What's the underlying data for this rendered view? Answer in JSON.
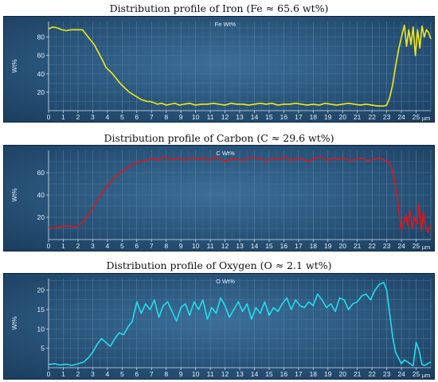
{
  "chart_data": [
    {
      "type": "line",
      "title": "Distribution profile of Iron (Fe ≈ 65.6 wt%)",
      "series_label": "Fe Wt%",
      "ylabel": "Wt%",
      "xunit": "µm",
      "xlim": [
        0,
        26
      ],
      "ylim": [
        0,
        97
      ],
      "yticks": [
        20,
        40,
        60,
        80
      ],
      "xticks": [
        0,
        1,
        2,
        3,
        4,
        5,
        6,
        7,
        8,
        9,
        10,
        11,
        12,
        13,
        14,
        15,
        16,
        17,
        18,
        19,
        20,
        21,
        22,
        23,
        24,
        25
      ],
      "color": "#f2e916",
      "x": [
        0,
        0.3,
        0.6,
        0.9,
        1.2,
        1.5,
        1.8,
        2.1,
        2.3,
        2.5,
        2.7,
        2.9,
        3.1,
        3.3,
        3.5,
        3.7,
        3.9,
        4.1,
        4.3,
        4.5,
        4.7,
        4.9,
        5.1,
        5.3,
        5.5,
        5.7,
        5.9,
        6.1,
        6.3,
        6.5,
        6.7,
        6.9,
        7.1,
        7.4,
        7.7,
        8.0,
        8.3,
        8.6,
        8.9,
        9.2,
        9.6,
        10,
        10.4,
        10.8,
        11.2,
        11.6,
        12,
        12.4,
        12.8,
        13.2,
        13.6,
        14,
        14.4,
        14.8,
        15.2,
        15.6,
        16,
        16.4,
        16.8,
        17.2,
        17.6,
        18,
        18.4,
        18.8,
        19.2,
        19.6,
        20,
        20.4,
        20.8,
        21.2,
        21.6,
        22,
        22.4,
        22.8,
        23.0,
        23.2,
        23.4,
        23.6,
        23.8,
        24.0,
        24.2,
        24.35,
        24.5,
        24.65,
        24.8,
        24.95,
        25.1,
        25.25,
        25.4,
        25.55,
        25.7,
        25.85,
        26.0
      ],
      "values": [
        89,
        91,
        90,
        88,
        87,
        88,
        88,
        88,
        88,
        84,
        80,
        76,
        72,
        66,
        60,
        54,
        47,
        44,
        41,
        37,
        33,
        29,
        26,
        23,
        20,
        18,
        16,
        14,
        12,
        11,
        10,
        10,
        9,
        7,
        8,
        6,
        7,
        8,
        6,
        7,
        8,
        6,
        7,
        7,
        8,
        7,
        6,
        8,
        7,
        7,
        6,
        7,
        8,
        7,
        8,
        6,
        7,
        7,
        8,
        7,
        6,
        7,
        6,
        8,
        7,
        6,
        7,
        8,
        7,
        6,
        7,
        6,
        5,
        5,
        6,
        14,
        28,
        48,
        66,
        80,
        93,
        70,
        88,
        72,
        91,
        60,
        88,
        68,
        92,
        80,
        88,
        85,
        78
      ]
    },
    {
      "type": "line",
      "title": "Distribution profile of Carbon (C ≈ 29.6 wt%)",
      "series_label": "C Wt%",
      "ylabel": "Wt%",
      "xunit": "µm",
      "xlim": [
        0,
        26
      ],
      "ylim": [
        0,
        80
      ],
      "yticks": [
        20,
        40,
        60
      ],
      "xticks": [
        0,
        1,
        2,
        3,
        4,
        5,
        6,
        7,
        8,
        9,
        10,
        11,
        12,
        13,
        14,
        15,
        16,
        17,
        18,
        19,
        20,
        21,
        22,
        23,
        24,
        25
      ],
      "color": "#e0151b",
      "x": [
        0,
        0.3,
        0.6,
        0.9,
        1.2,
        1.5,
        1.8,
        2.1,
        2.4,
        2.7,
        3.0,
        3.2,
        3.4,
        3.6,
        3.8,
        4.0,
        4.2,
        4.4,
        4.6,
        4.8,
        5.0,
        5.2,
        5.4,
        5.6,
        5.8,
        6.0,
        6.3,
        6.6,
        6.9,
        7.2,
        7.5,
        7.8,
        8.1,
        8.5,
        8.9,
        9.3,
        9.7,
        10.1,
        10.5,
        10.9,
        11.3,
        11.7,
        12.1,
        12.5,
        12.9,
        13.3,
        13.7,
        14.1,
        14.5,
        14.9,
        15.3,
        15.7,
        16.1,
        16.5,
        16.9,
        17.3,
        17.7,
        18.1,
        18.5,
        18.9,
        19.3,
        19.7,
        20.1,
        20.5,
        20.9,
        21.3,
        21.7,
        22.1,
        22.5,
        22.9,
        23.1,
        23.3,
        23.5,
        23.7,
        23.85,
        24.0,
        24.15,
        24.3,
        24.45,
        24.6,
        24.75,
        24.9,
        25.05,
        25.2,
        25.35,
        25.5,
        25.65,
        25.8,
        26.0
      ],
      "values": [
        11,
        10,
        11,
        12,
        12,
        12,
        11,
        13,
        17,
        22,
        28,
        33,
        37,
        41,
        45,
        48,
        51,
        54,
        57,
        59,
        61,
        63,
        65,
        66,
        68,
        69,
        70,
        71,
        72,
        73,
        71,
        74,
        73,
        72,
        73,
        71,
        74,
        72,
        73,
        71,
        74,
        72,
        70,
        73,
        72,
        71,
        74,
        73,
        72,
        71,
        73,
        72,
        74,
        71,
        73,
        72,
        70,
        73,
        74,
        71,
        73,
        72,
        73,
        71,
        72,
        73,
        71,
        72,
        73,
        71,
        70,
        65,
        55,
        40,
        22,
        8,
        15,
        22,
        12,
        26,
        10,
        20,
        14,
        32,
        8,
        25,
        12,
        6,
        13
      ]
    },
    {
      "type": "line",
      "title": "Distribution profile of Oxygen (O ≈ 2.1 wt%)",
      "series_label": "O Wt%",
      "ylabel": "Wt%",
      "xunit": "µm",
      "xlim": [
        0,
        26
      ],
      "ylim": [
        0,
        23
      ],
      "yticks": [
        5,
        10,
        15,
        20
      ],
      "xticks": [
        0,
        1,
        2,
        3,
        4,
        5,
        6,
        7,
        8,
        9,
        10,
        11,
        12,
        13,
        14,
        15,
        16,
        17,
        18,
        19,
        20,
        21,
        22,
        23,
        24,
        25
      ],
      "color": "#22dff0",
      "x": [
        0,
        0.4,
        0.8,
        1.2,
        1.6,
        2.0,
        2.4,
        2.7,
        3.0,
        3.3,
        3.6,
        3.9,
        4.2,
        4.5,
        4.8,
        5.1,
        5.4,
        5.7,
        6.0,
        6.3,
        6.6,
        6.9,
        7.2,
        7.5,
        7.8,
        8.1,
        8.4,
        8.7,
        9.0,
        9.3,
        9.6,
        9.9,
        10.2,
        10.5,
        10.8,
        11.1,
        11.4,
        11.7,
        12.0,
        12.3,
        12.6,
        12.9,
        13.2,
        13.5,
        13.8,
        14.1,
        14.4,
        14.7,
        15.0,
        15.3,
        15.6,
        15.9,
        16.2,
        16.5,
        16.8,
        17.1,
        17.4,
        17.7,
        18.0,
        18.3,
        18.6,
        18.9,
        19.2,
        19.5,
        19.8,
        20.1,
        20.4,
        20.7,
        21.0,
        21.3,
        21.6,
        21.9,
        22.2,
        22.5,
        22.8,
        23.0,
        23.2,
        23.4,
        23.6,
        23.8,
        24.0,
        24.2,
        24.4,
        24.6,
        24.8,
        25.0,
        25.2,
        25.4,
        25.6,
        26.0
      ],
      "values": [
        0.8,
        1.0,
        0.7,
        0.9,
        0.6,
        1.0,
        1.5,
        2.5,
        4.0,
        6.0,
        7.5,
        6.5,
        5.5,
        7.5,
        9.0,
        8.5,
        10.5,
        12.0,
        17.0,
        14.0,
        16.5,
        15.0,
        17.5,
        13.0,
        16.0,
        17.0,
        14.5,
        12.0,
        15.5,
        16.5,
        13.5,
        17.0,
        15.0,
        17.5,
        12.5,
        15.5,
        14.0,
        18.0,
        16.0,
        13.0,
        15.0,
        17.0,
        14.5,
        16.5,
        12.5,
        15.5,
        14.0,
        17.0,
        13.5,
        15.5,
        14.5,
        16.5,
        18.0,
        15.0,
        17.5,
        16.0,
        15.5,
        17.0,
        16.0,
        19.0,
        17.5,
        15.5,
        16.5,
        14.5,
        18.0,
        17.5,
        15.0,
        16.5,
        17.0,
        18.5,
        19.0,
        17.5,
        20.0,
        21.5,
        22.0,
        20.0,
        14.0,
        8.0,
        4.0,
        2.5,
        1.0,
        2.0,
        1.5,
        1.0,
        0.5,
        6.5,
        4.5,
        0.8,
        0.6,
        1.5
      ]
    }
  ]
}
